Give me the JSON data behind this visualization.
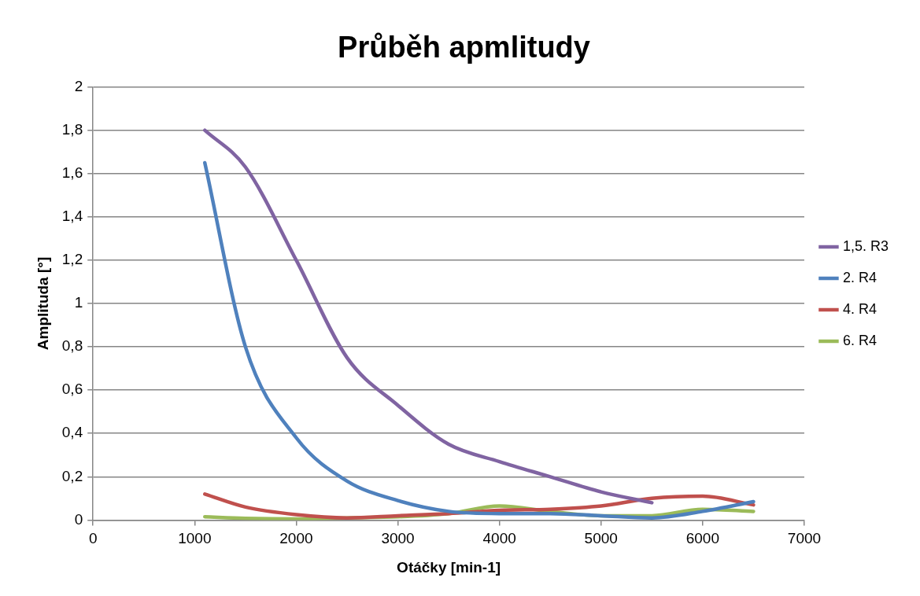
{
  "chart_data": {
    "type": "line",
    "title": "Průběh apmlitudy",
    "xlabel": "Otáčky [min-1]",
    "ylabel": "Amplituda [°]",
    "xlim": [
      0,
      7000
    ],
    "xticks": [
      0,
      1000,
      2000,
      3000,
      4000,
      5000,
      6000,
      7000
    ],
    "ylim": [
      0,
      2
    ],
    "yticks": [
      {
        "value": 0,
        "label": "0"
      },
      {
        "value": 0.2,
        "label": "0,2"
      },
      {
        "value": 0.4,
        "label": "0,4"
      },
      {
        "value": 0.6,
        "label": "0,6"
      },
      {
        "value": 0.8,
        "label": "0,8"
      },
      {
        "value": 1,
        "label": "1"
      },
      {
        "value": 1.2,
        "label": "1,2"
      },
      {
        "value": 1.4,
        "label": "1,4"
      },
      {
        "value": 1.6,
        "label": "1,6"
      },
      {
        "value": 1.8,
        "label": "1,8"
      },
      {
        "value": 2,
        "label": "2"
      }
    ],
    "grid": "y",
    "legend": "right",
    "marker": "none",
    "line_style": "solid",
    "series": [
      {
        "name": "1,5. R3",
        "color": "#8064a2",
        "x": [
          1100,
          1500,
          2000,
          2500,
          3000,
          3500,
          4000,
          4500,
          5000,
          5500
        ],
        "values": [
          1.8,
          1.63,
          1.2,
          0.75,
          0.53,
          0.35,
          0.27,
          0.2,
          0.13,
          0.08
        ]
      },
      {
        "name": "2. R4",
        "color": "#4f81bd",
        "x": [
          1100,
          1500,
          2000,
          2500,
          3000,
          3500,
          4000,
          4500,
          5000,
          5500,
          6000,
          6500
        ],
        "values": [
          1.65,
          0.8,
          0.38,
          0.18,
          0.09,
          0.04,
          0.03,
          0.03,
          0.02,
          0.01,
          0.04,
          0.085
        ]
      },
      {
        "name": "4. R4",
        "color": "#c0504d",
        "x": [
          1100,
          1500,
          2000,
          2500,
          3000,
          3500,
          4000,
          4500,
          5000,
          5500,
          6000,
          6500
        ],
        "values": [
          0.12,
          0.06,
          0.025,
          0.01,
          0.02,
          0.03,
          0.045,
          0.05,
          0.065,
          0.1,
          0.11,
          0.07
        ]
      },
      {
        "name": "6. R4",
        "color": "#9bbb59",
        "x": [
          1100,
          1500,
          2000,
          2500,
          3000,
          3500,
          4000,
          4500,
          5000,
          5500,
          6000,
          6500
        ],
        "values": [
          0.015,
          0.008,
          0.005,
          0.01,
          0.015,
          0.03,
          0.065,
          0.04,
          0.02,
          0.02,
          0.05,
          0.04
        ]
      }
    ]
  }
}
